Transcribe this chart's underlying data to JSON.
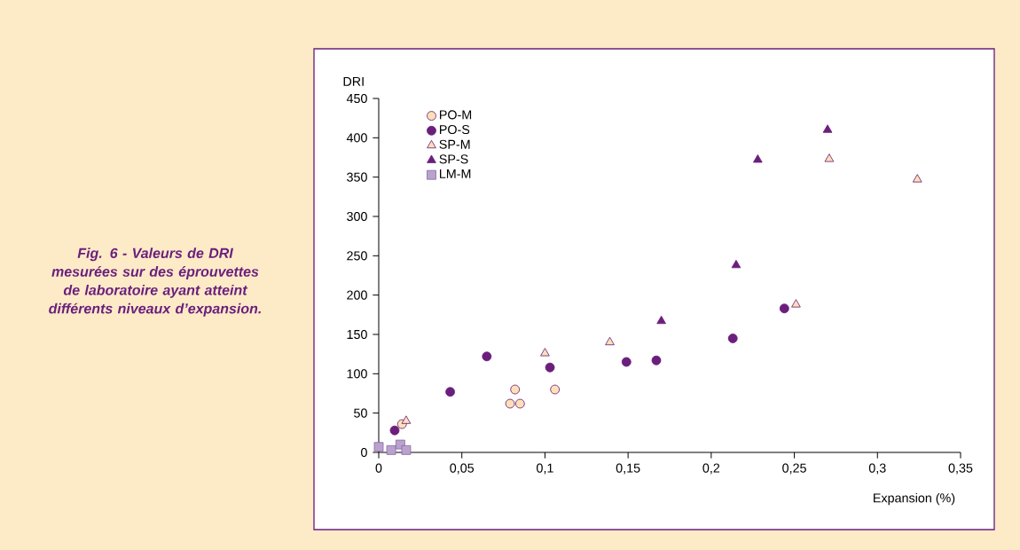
{
  "chart_data": {
    "type": "scatter",
    "title": "Fig. 6 - Valeurs de DRI mesurées sur des éprouvettes de laboratoire ayant atteint différents niveaux d’expansion.",
    "xlabel": "Expansion (%)",
    "ylabel": "DRI",
    "xlim": [
      0,
      0.35
    ],
    "ylim": [
      0,
      450
    ],
    "xticks": [
      0,
      {
        "value": 0.05,
        "label": "0,05"
      },
      {
        "value": 0.1,
        "label": "0,1"
      },
      {
        "value": 0.15,
        "label": "0,15"
      },
      {
        "value": 0.2,
        "label": "0,2"
      },
      {
        "value": 0.25,
        "label": "0,25"
      },
      {
        "value": 0.3,
        "label": "0,3"
      },
      {
        "value": 0.35,
        "label": "0,35"
      }
    ],
    "yticks": [
      0,
      50,
      100,
      150,
      200,
      250,
      300,
      350,
      400,
      450
    ],
    "legend": "top left",
    "grid": false,
    "series": [
      {
        "name": "PO-M",
        "color": "#fde0b8",
        "marker": "circle",
        "x": [
          0.014,
          0.079,
          0.085,
          0.082,
          0.106
        ],
        "values": [
          36,
          62,
          62,
          80,
          80
        ]
      },
      {
        "name": "PO-S",
        "color": "#6b1f7c",
        "marker": "circle",
        "x": [
          0.0096,
          0.043,
          0.065,
          0.103,
          0.149,
          0.167,
          0.213,
          0.244
        ],
        "values": [
          28,
          77,
          122,
          108,
          115,
          117,
          145,
          183
        ]
      },
      {
        "name": "SP-M",
        "color": "#fde0b8",
        "marker": "triangle",
        "x": [
          0.0165,
          0.1,
          0.139,
          0.251,
          0.271,
          0.324
        ],
        "values": [
          40,
          126,
          140,
          188,
          373,
          347
        ]
      },
      {
        "name": "SP-S",
        "color": "#6b1f7c",
        "marker": "triangle",
        "x": [
          0.17,
          0.215,
          0.228,
          0.27
        ],
        "values": [
          167,
          238,
          372,
          410
        ]
      },
      {
        "name": "LM-M",
        "color": "#b9a3cc",
        "marker": "square",
        "x": [
          0,
          0.0075,
          0.013,
          0.0165
        ],
        "values": [
          7,
          3,
          10,
          3
        ]
      }
    ]
  }
}
